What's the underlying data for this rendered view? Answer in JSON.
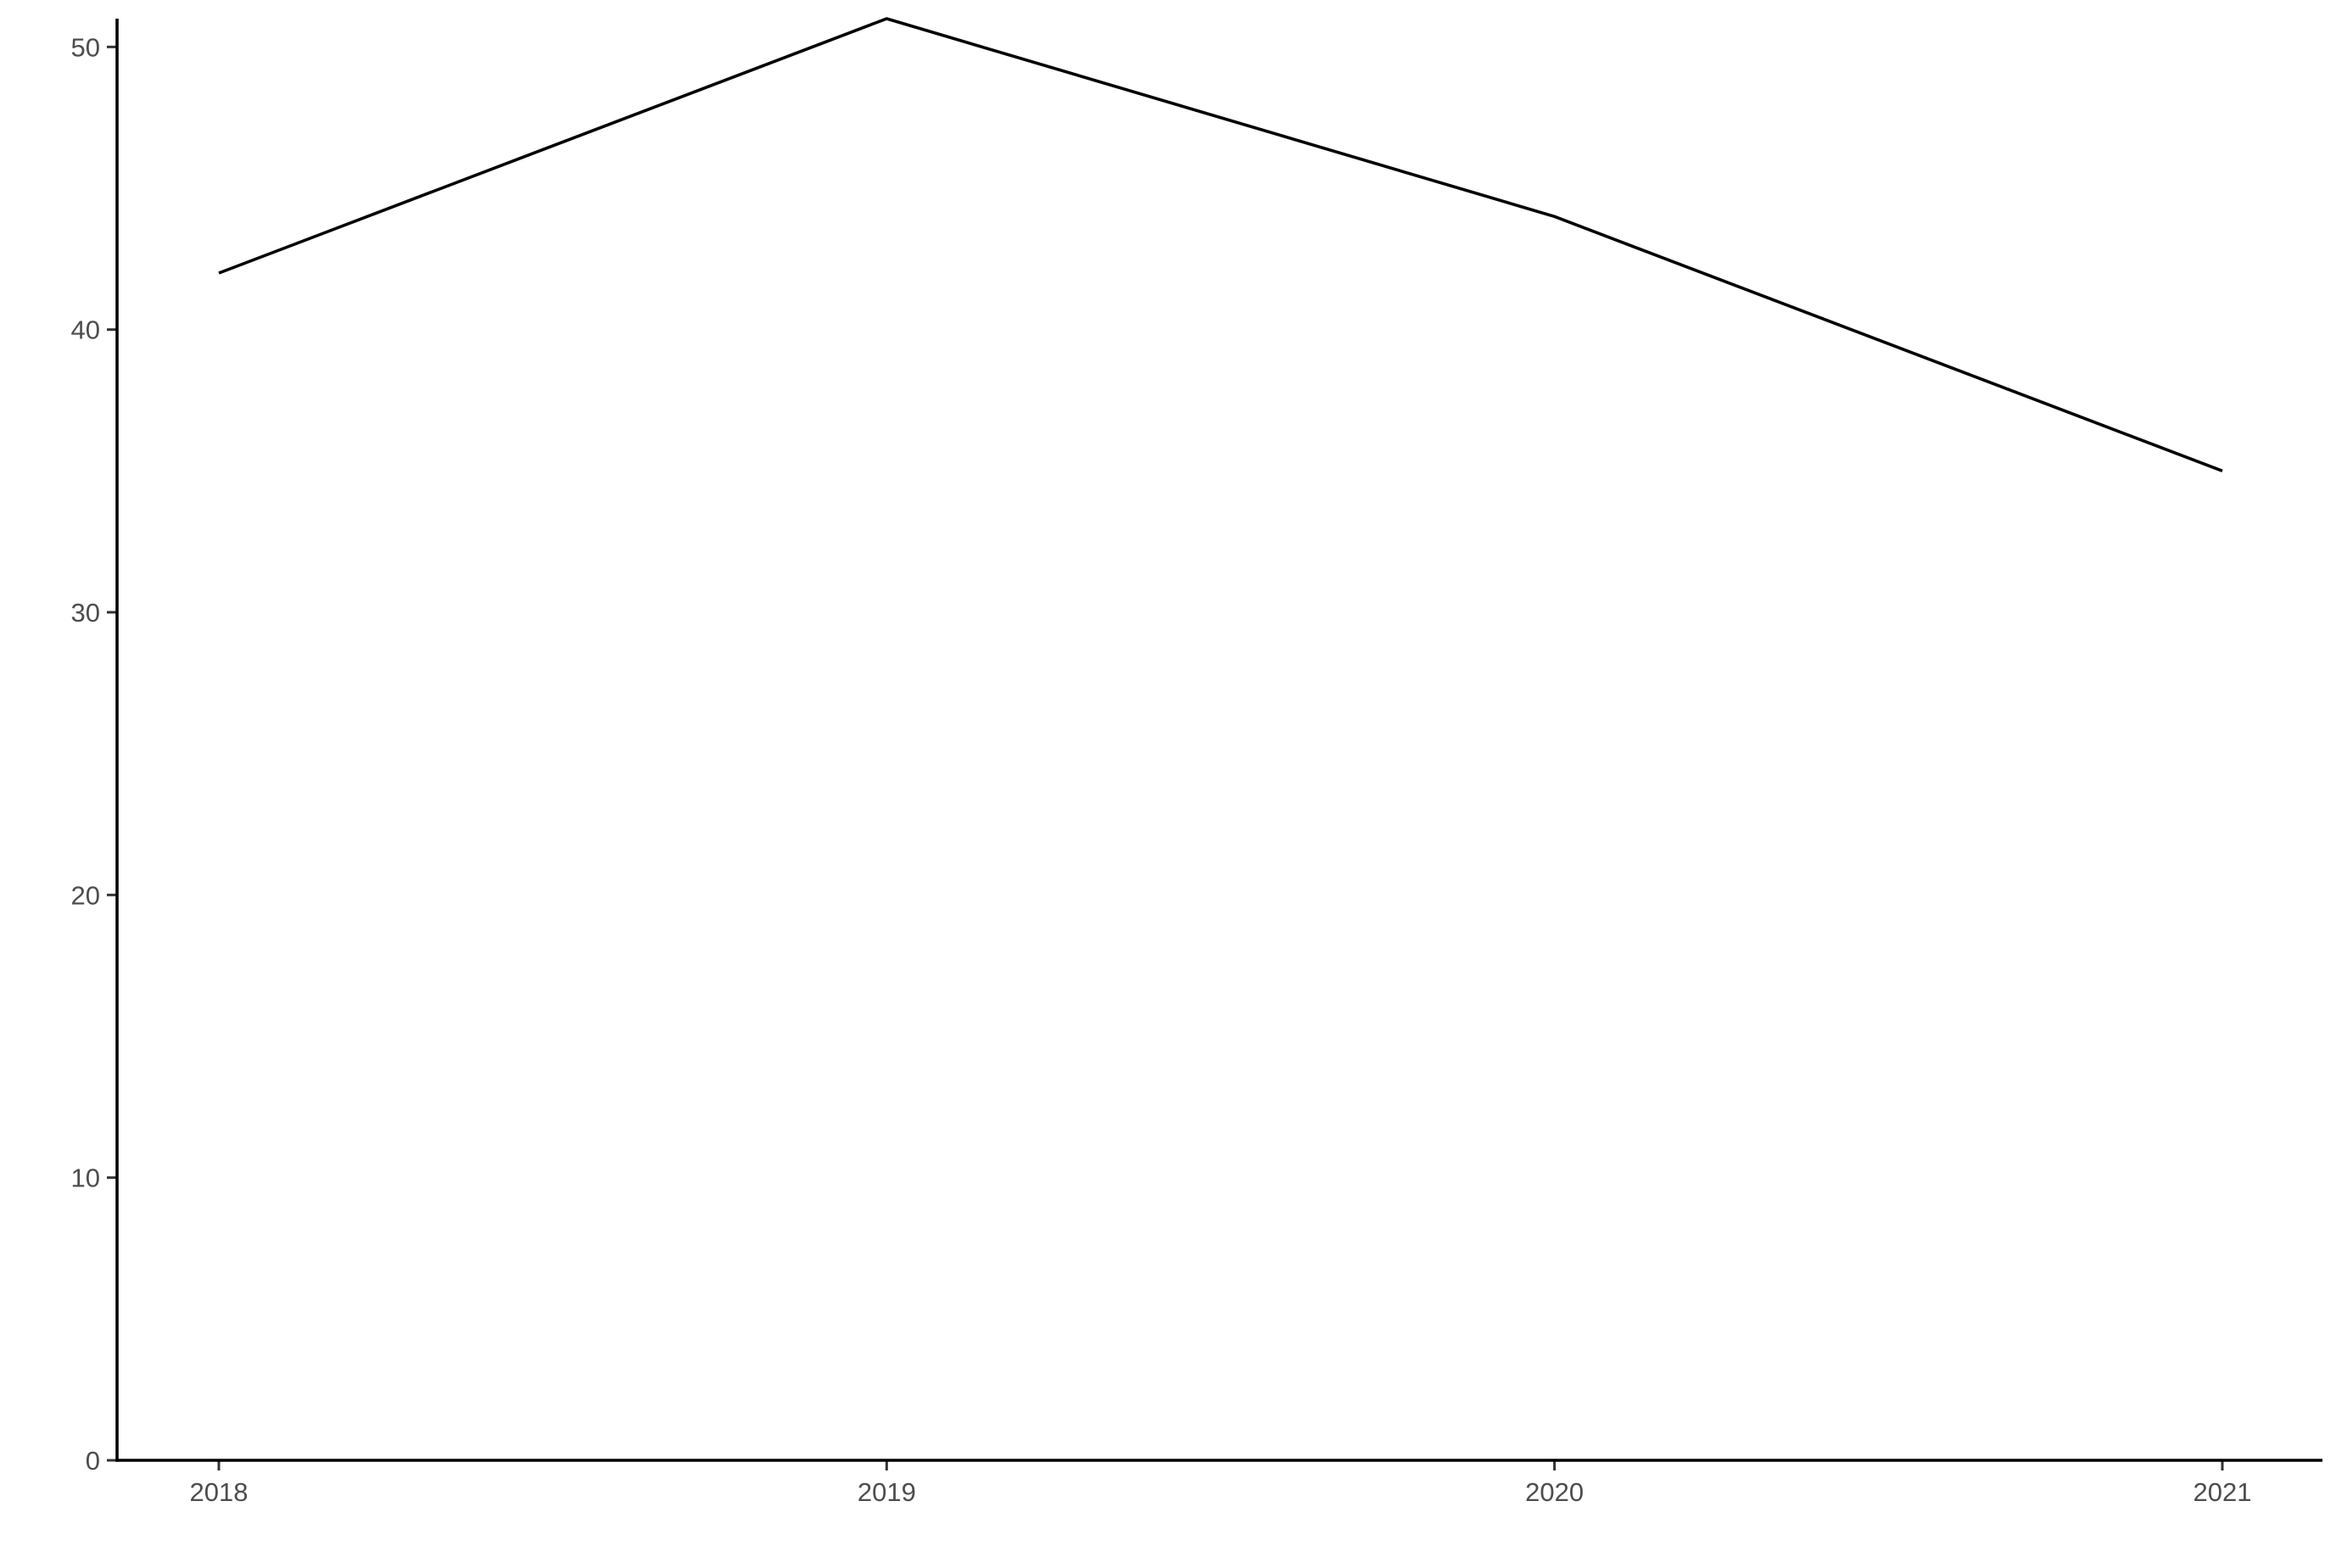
{
  "chart_data": {
    "type": "line",
    "title": "",
    "xlabel": "",
    "ylabel": "",
    "x": [
      "2018",
      "2019",
      "2020",
      "2021"
    ],
    "series": [
      {
        "values": [
          42,
          51,
          44,
          35
        ]
      }
    ],
    "ylim": [
      0,
      51
    ],
    "yticks": [
      0,
      10,
      20,
      30,
      40,
      50
    ],
    "grid": false,
    "legend": "none",
    "line_color": "#000000"
  }
}
